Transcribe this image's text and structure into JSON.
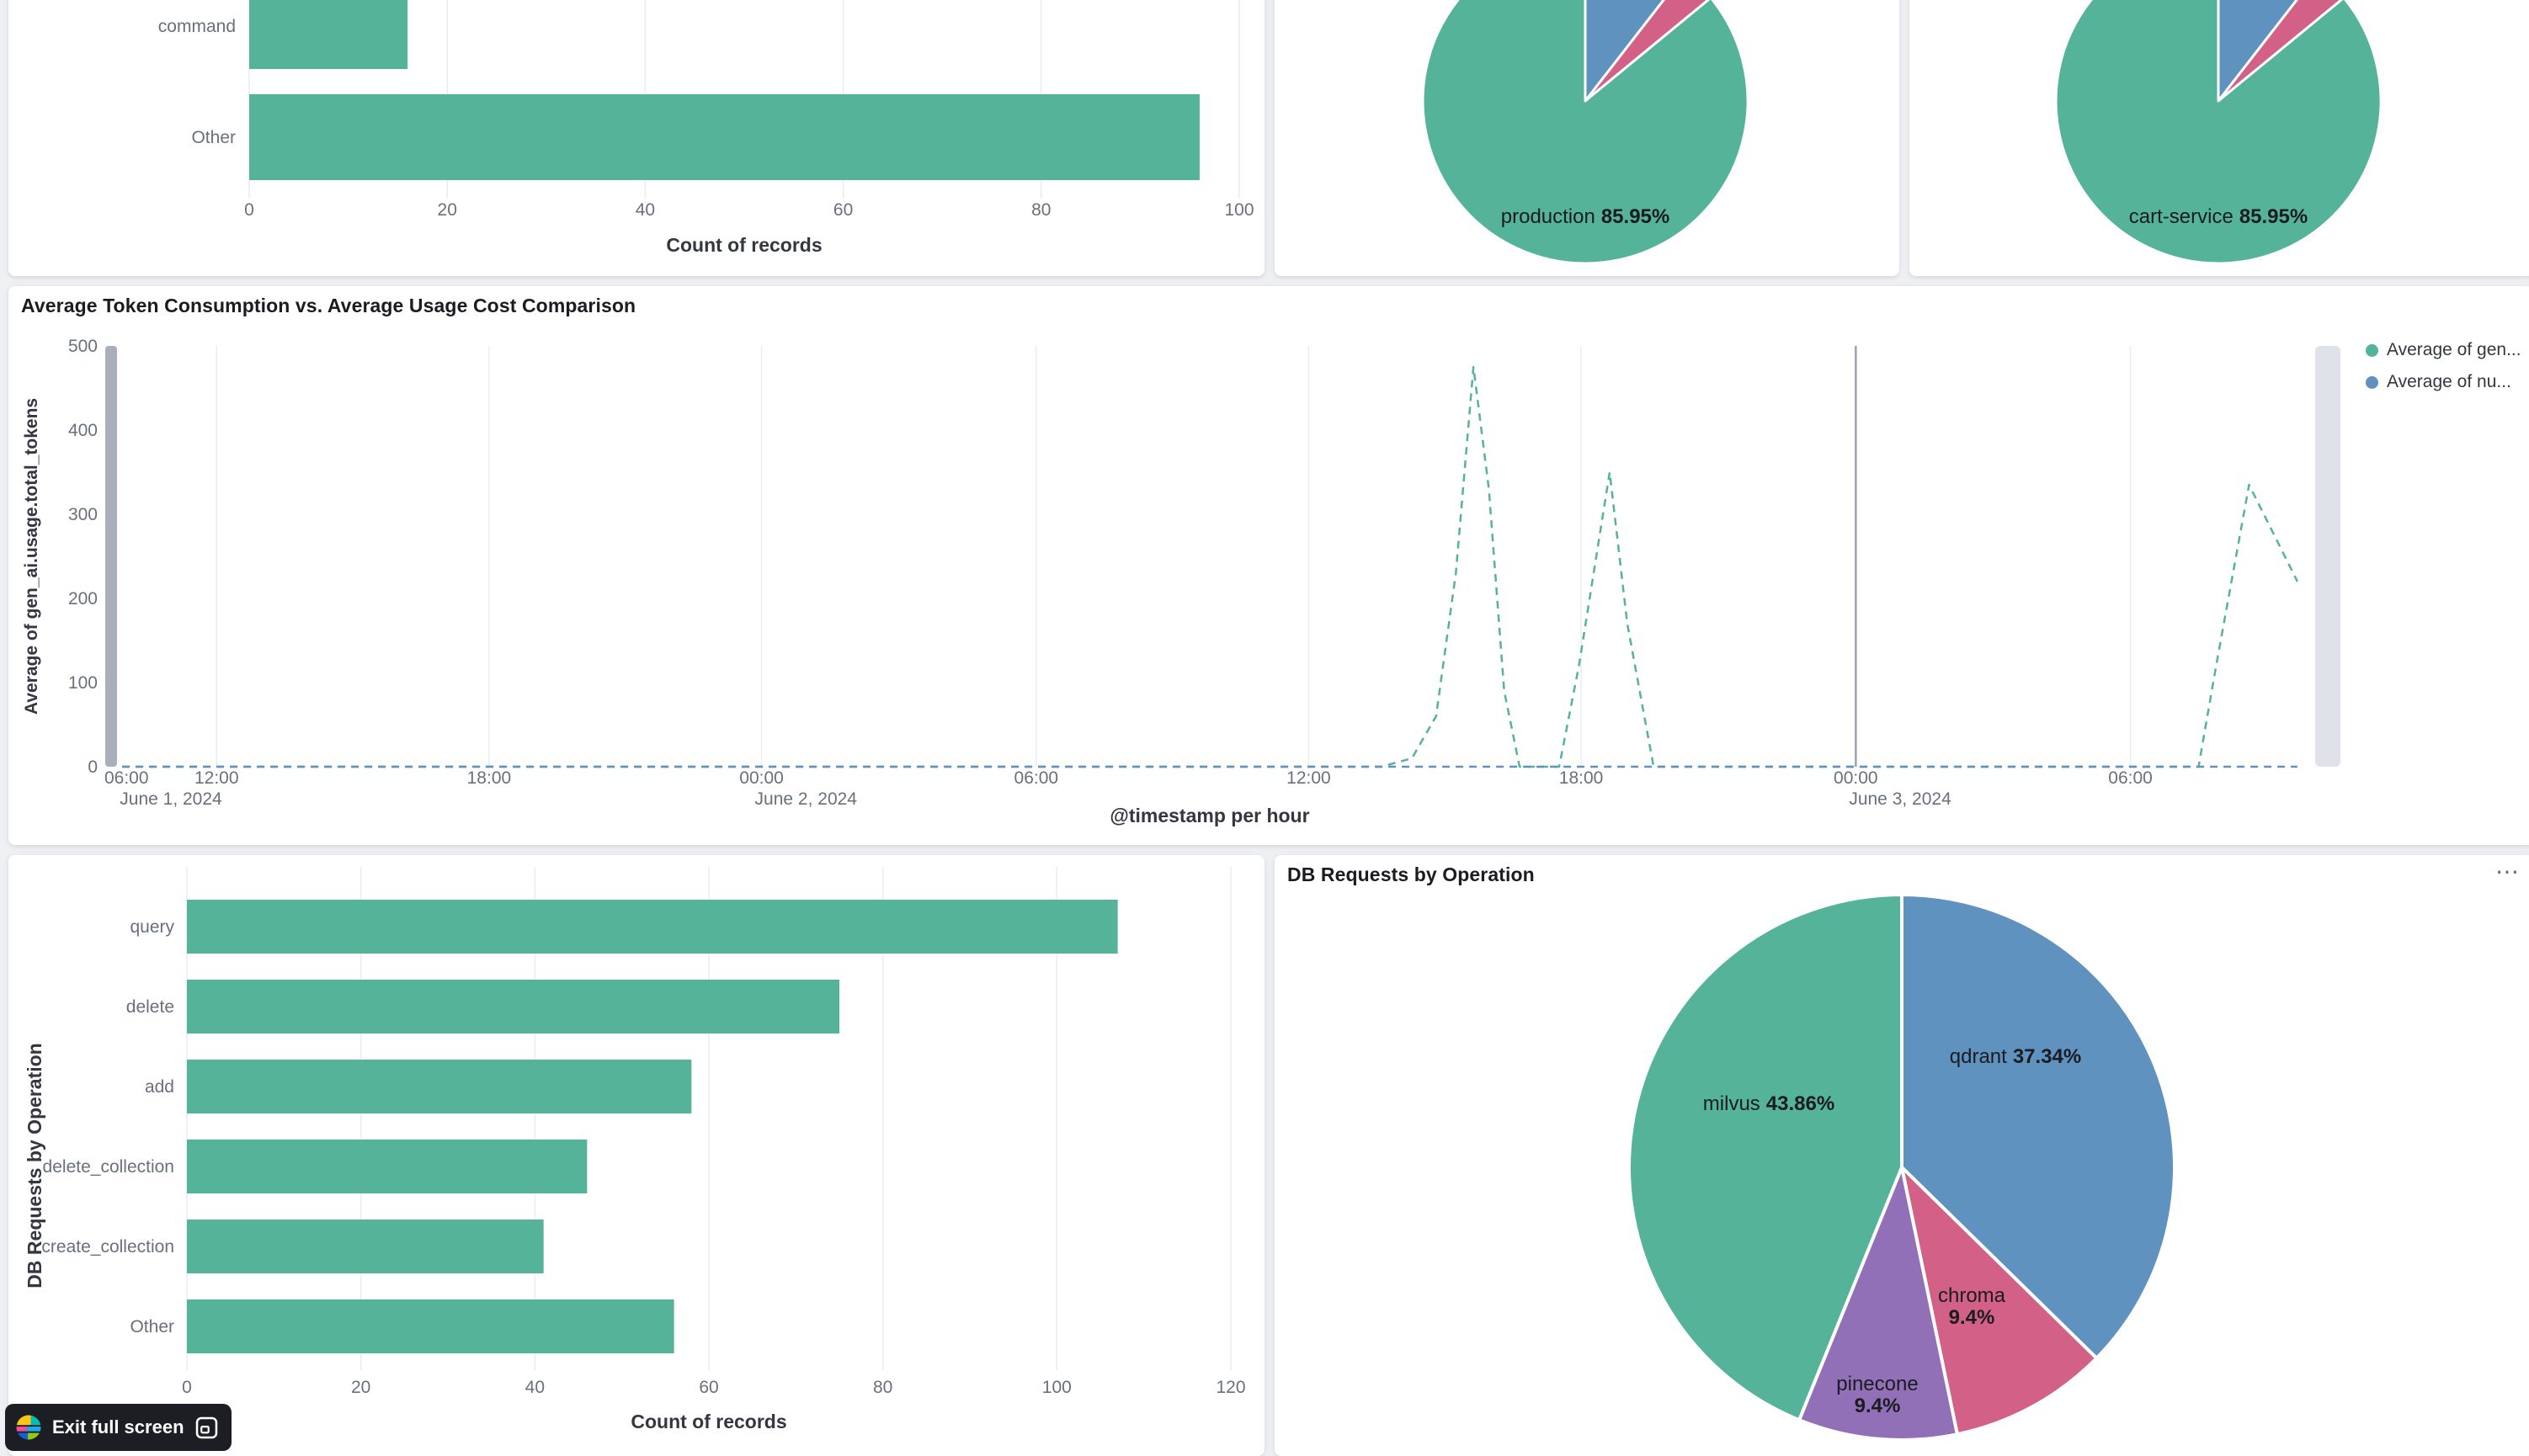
{
  "palette": {
    "green": "#54B399",
    "blue": "#6092C0",
    "pink": "#D36086",
    "purple": "#9170B8",
    "page_background": "#eef0f4",
    "panel_background": "#ffffff"
  },
  "icons": {
    "panel_options": "⋯",
    "exit_button_logo": "elastic-logo",
    "exit_button_glyph": "fullscreen-exit"
  },
  "exit_button": {
    "label": "Exit full screen"
  },
  "chart_data": [
    {
      "type": "bar",
      "orientation": "horizontal",
      "categories": [
        "command",
        "Other"
      ],
      "values": [
        16,
        96
      ],
      "xlabel": "Count of records",
      "xlim": [
        0,
        100
      ],
      "xticks": [
        0,
        20,
        40,
        60,
        80,
        100
      ],
      "bar_color": "#54B399"
    },
    {
      "type": "pie",
      "slices": [
        {
          "label": "",
          "value": 10.5,
          "color": "#6092C0"
        },
        {
          "label": "",
          "value": 3.55,
          "color": "#D36086"
        },
        {
          "label": "production",
          "value": 85.95,
          "color": "#54B399"
        }
      ],
      "callout": {
        "name": "production",
        "pct": "85.95%",
        "two_line": false
      }
    },
    {
      "type": "pie",
      "slices": [
        {
          "label": "",
          "value": 10.5,
          "color": "#6092C0"
        },
        {
          "label": "",
          "value": 3.55,
          "color": "#D36086"
        },
        {
          "label": "cart-service",
          "value": 85.95,
          "color": "#54B399"
        }
      ],
      "callout": {
        "name": "cart-service",
        "pct": "85.95%",
        "two_line": false
      }
    },
    {
      "type": "line",
      "title": "Average Token Consumption vs. Average Usage Cost Comparison",
      "ylabel": "Average of gen_ai.usage.total_tokens",
      "xlabel": "@timestamp per hour",
      "ylim": [
        0,
        500
      ],
      "yticks": [
        0,
        100,
        200,
        300,
        400,
        500
      ],
      "xticks": [
        {
          "label": "06:00",
          "date": "June 1, 2024",
          "f": 0.007
        },
        {
          "label": "12:00",
          "f": 0.048
        },
        {
          "label": "18:00",
          "f": 0.172
        },
        {
          "label": "00:00",
          "date": "June 2, 2024",
          "f": 0.296
        },
        {
          "label": "06:00",
          "f": 0.421
        },
        {
          "label": "12:00",
          "f": 0.545
        },
        {
          "label": "18:00",
          "f": 0.669
        },
        {
          "label": "00:00",
          "date": "June 3, 2024",
          "f": 0.794
        },
        {
          "label": "06:00",
          "f": 0.919
        }
      ],
      "legend": [
        {
          "label": "Average of gen...",
          "color": "#54B399"
        },
        {
          "label": "Average of nu...",
          "color": "#6092C0"
        }
      ],
      "series": [
        {
          "name": "Average of gen...",
          "color": "#54B399",
          "dashed": true,
          "points": [
            [
              0.005,
              0
            ],
            [
              0.578,
              0
            ],
            [
              0.592,
              10
            ],
            [
              0.603,
              60
            ],
            [
              0.612,
              230
            ],
            [
              0.62,
              475
            ],
            [
              0.627,
              330
            ],
            [
              0.634,
              90
            ],
            [
              0.641,
              0
            ],
            [
              0.659,
              0
            ],
            [
              0.668,
              120
            ],
            [
              0.682,
              350
            ],
            [
              0.69,
              170
            ],
            [
              0.702,
              0
            ],
            [
              0.8,
              0
            ],
            [
              0.95,
              0
            ],
            [
              0.958,
              120
            ],
            [
              0.973,
              335
            ],
            [
              0.995,
              220
            ]
          ]
        },
        {
          "name": "Average of nu...",
          "color": "#6092C0",
          "dashed": true,
          "points": [
            [
              0.005,
              0
            ],
            [
              0.995,
              0
            ]
          ]
        }
      ]
    },
    {
      "type": "bar",
      "orientation": "horizontal",
      "categories": [
        "query",
        "delete",
        "add",
        "delete_collection",
        "create_collection",
        "Other"
      ],
      "values": [
        107,
        75,
        58,
        46,
        41,
        56
      ],
      "xlabel": "Count of records",
      "ylabel": "DB Requests by Operation",
      "xlim": [
        0,
        120
      ],
      "xticks": [
        0,
        20,
        40,
        60,
        80,
        100,
        120
      ],
      "bar_color": "#54B399"
    },
    {
      "type": "pie",
      "title": "DB Requests by Operation",
      "slices": [
        {
          "label": "qdrant",
          "value": 37.34,
          "color": "#6092C0"
        },
        {
          "label": "chroma",
          "value": 9.4,
          "color": "#D36086"
        },
        {
          "label": "pinecone",
          "value": 9.4,
          "color": "#9170B8"
        },
        {
          "label": "milvus",
          "value": 43.86,
          "color": "#54B399"
        }
      ],
      "callouts": [
        {
          "name": "qdrant",
          "pct": "37.34%",
          "two_line": false
        },
        {
          "name": "milvus",
          "pct": "43.86%",
          "two_line": false
        },
        {
          "name": "chroma",
          "pct": "9.4%",
          "two_line": true
        },
        {
          "name": "pinecone",
          "pct": "9.4%",
          "two_line": true
        }
      ]
    }
  ]
}
